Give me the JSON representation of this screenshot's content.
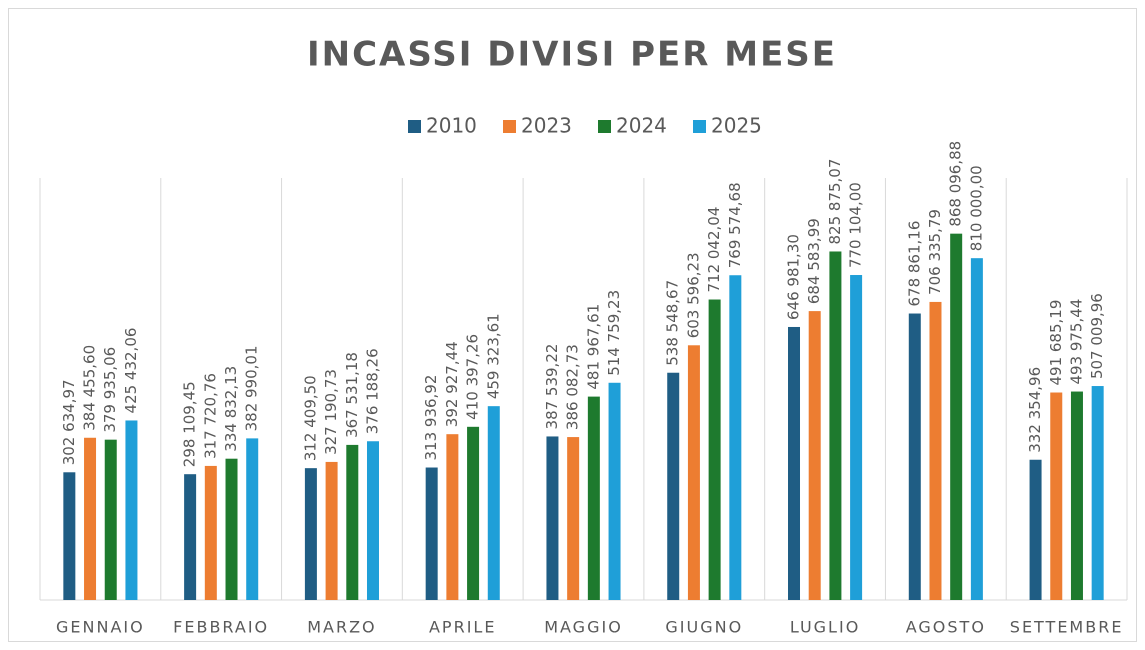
{
  "chart_data": {
    "type": "bar",
    "title": "INCASSI DIVISI PER MESE",
    "categories": [
      "GENNAIO",
      "FEBBRAIO",
      "MARZO",
      "APRILE",
      "MAGGIO",
      "GIUGNO",
      "LUGLIO",
      "AGOSTO",
      "SETTEMBRE"
    ],
    "series": [
      {
        "name": "2010",
        "color": "#1f5d84",
        "values": [
          302634.97,
          298109.45,
          312409.5,
          313936.92,
          387539.22,
          538548.67,
          646981.3,
          678861.16,
          332354.96
        ],
        "value_labels": [
          "302 634,97",
          "298 109,45",
          "312 409,50",
          "313 936,92",
          "387 539,22",
          "538 548,67",
          "646 981,30",
          "678 861,16",
          "332 354,96"
        ]
      },
      {
        "name": "2023",
        "color": "#ed7d31",
        "values": [
          384455.6,
          317720.76,
          327190.73,
          392927.44,
          386082.73,
          603596.23,
          684583.99,
          706335.79,
          491685.19
        ],
        "value_labels": [
          "384 455,60",
          "317 720,76",
          "327 190,73",
          "392 927,44",
          "386 082,73",
          "603 596,23",
          "684 583,99",
          "706 335,79",
          "491 685,19"
        ]
      },
      {
        "name": "2024",
        "color": "#1e7a2e",
        "values": [
          379935.06,
          334832.13,
          367531.18,
          410397.26,
          481967.61,
          712042.04,
          825875.07,
          868096.88,
          493975.44
        ],
        "value_labels": [
          "379 935,06",
          "334 832,13",
          "367 531,18",
          "410 397,26",
          "481 967,61",
          "712 042,04",
          "825 875,07",
          "868 096,88",
          "493 975,44"
        ]
      },
      {
        "name": "2025",
        "color": "#1f9fd8",
        "values": [
          425432.06,
          382990.01,
          376188.26,
          459323.61,
          514759.23,
          769574.68,
          770104.0,
          810000.0,
          507009.96
        ],
        "value_labels": [
          "425 432,06",
          "382 990,01",
          "376 188,26",
          "459 323,61",
          "514 759,23",
          "769 574,68",
          "770 104,00",
          "810 000,00",
          "507 009,96"
        ]
      }
    ],
    "ylim": [
      0,
      1000000
    ],
    "legend": "top"
  }
}
